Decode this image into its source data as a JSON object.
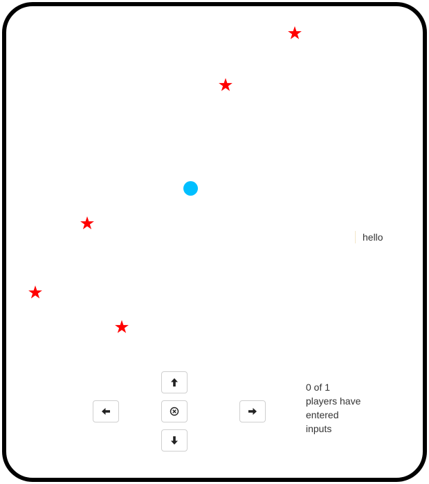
{
  "board": {
    "star_color": "#ff0000",
    "player_color": "#00bfff",
    "star_icon": "star-icon",
    "player_icon": "circle-icon"
  },
  "chat": {
    "message": "hello"
  },
  "controls": {
    "up_icon": "arrow-up-icon",
    "down_icon": "arrow-down-icon",
    "left_icon": "arrow-left-icon",
    "right_icon": "arrow-right-icon",
    "stay_icon": "stay-icon"
  },
  "status": {
    "lines": [
      "0 of 1",
      "players have",
      "entered",
      "inputs"
    ]
  }
}
